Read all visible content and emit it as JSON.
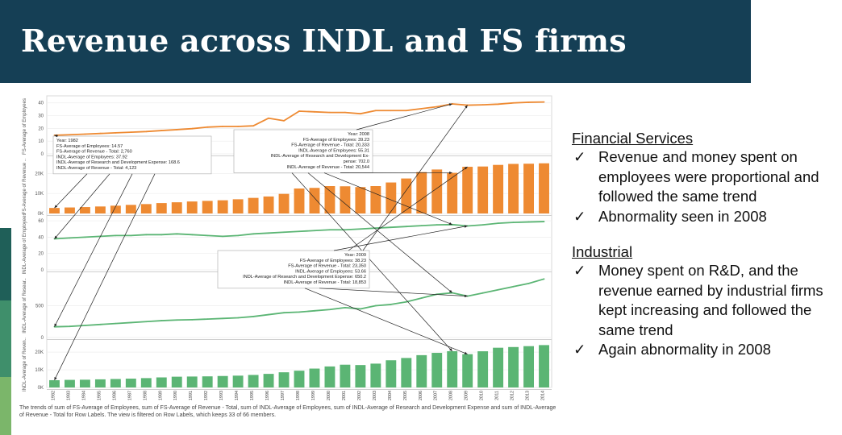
{
  "slide": {
    "title": "Revenue across INDL and FS firms",
    "accent_color": "#153f55",
    "stripe_colors": [
      "#1f5f58",
      "#3f8f6b",
      "#7bb66a"
    ]
  },
  "caption": "The trends of sum of FS-Average of Employees, sum of FS-Average of Revenue - Total, sum of INDL-Average of Employees, sum of INDL-Average of Research and Development Expense and sum of INDL-Average of Revenue - Total for Row Labels. The view is filtered on Row Labels, which keeps 33 of 66 members.",
  "right_panel": {
    "sections": [
      {
        "heading": "Financial Services",
        "bullets": [
          "Revenue and money spent on employees were proportional and followed the same trend",
          "Abnormality seen in 2008"
        ]
      },
      {
        "heading": "Industrial",
        "bullets": [
          "Money spent on R&D, and the revenue earned by industrial firms kept increasing and followed the same trend",
          "Again abnormality in 2008"
        ]
      }
    ],
    "check_glyph": "✓"
  },
  "chart_data": {
    "type": "line",
    "x": [
      1982,
      1983,
      1984,
      1985,
      1986,
      1987,
      1988,
      1989,
      1990,
      1991,
      1992,
      1993,
      1994,
      1995,
      1996,
      1997,
      1998,
      1999,
      2000,
      2001,
      2002,
      2003,
      2004,
      2005,
      2006,
      2007,
      2008,
      2009,
      2010,
      2011,
      2012,
      2013,
      2014
    ],
    "orange_color": "#ee8a32",
    "green_color": "#5bb574",
    "panels": [
      {
        "id": "fs_emp",
        "kind": "line",
        "color": "orange",
        "ylabel": "FS-Average of Employees",
        "ticks": [
          {
            "v": 0,
            "label": "0"
          },
          {
            "v": 10,
            "label": "10"
          },
          {
            "v": 20,
            "label": "20"
          },
          {
            "v": 30,
            "label": "30"
          },
          {
            "v": 40,
            "label": "40"
          }
        ],
        "ylim": [
          0,
          43
        ],
        "values": [
          14.57,
          15,
          15.5,
          16,
          16.5,
          17,
          17.5,
          18.3,
          19,
          19.8,
          21,
          21.5,
          21.5,
          22,
          28,
          26,
          33.5,
          33,
          32.5,
          32.5,
          31.5,
          34,
          34,
          34,
          35.5,
          37,
          39.23,
          38.23,
          38.5,
          39,
          40,
          40.5,
          40.7
        ]
      },
      {
        "id": "fs_rev",
        "kind": "bar",
        "color": "orange",
        "ylabel": "FS-Average of Revenue ..",
        "ticks": [
          {
            "v": 0,
            "label": "0K"
          },
          {
            "v": 10000,
            "label": "10K"
          },
          {
            "v": 20000,
            "label": "20K"
          }
        ],
        "ylim": [
          0,
          27000
        ],
        "values": [
          2760,
          3000,
          3200,
          3500,
          3900,
          4300,
          4700,
          5200,
          5600,
          6000,
          6300,
          6600,
          7100,
          7800,
          8500,
          9800,
          12500,
          12800,
          13700,
          13600,
          13200,
          13700,
          15500,
          17500,
          20700,
          22000,
          20333,
          23350,
          23500,
          24300,
          24800,
          24900,
          25100
        ]
      },
      {
        "id": "indl_emp",
        "kind": "line",
        "color": "green",
        "ylabel": "INDL-Average of Employees",
        "ticks": [
          {
            "v": 0,
            "label": "0"
          },
          {
            "v": 20,
            "label": "20"
          },
          {
            "v": 40,
            "label": "40"
          },
          {
            "v": 60,
            "label": "60"
          }
        ],
        "ylim": [
          0,
          64
        ],
        "values": [
          37.92,
          39,
          40,
          41,
          42,
          42,
          43,
          43,
          44,
          43,
          42,
          41,
          42,
          44,
          45,
          46,
          47,
          48,
          49,
          49,
          50,
          51,
          52,
          53,
          54,
          55,
          55.31,
          53.66,
          55,
          57,
          58,
          58.5,
          59
        ]
      },
      {
        "id": "indl_rd",
        "kind": "line",
        "color": "green",
        "ylabel": "INDL-Average of Resear..",
        "ticks": [
          {
            "v": 0,
            "label": "0"
          },
          {
            "v": 500,
            "label": "500"
          }
        ],
        "ylim": [
          0,
          1000
        ],
        "values": [
          168.6,
          175,
          190,
          205,
          220,
          235,
          250,
          265,
          275,
          280,
          290,
          300,
          310,
          330,
          360,
          390,
          400,
          420,
          440,
          470,
          450,
          500,
          520,
          560,
          620,
          680,
          702,
          650.2,
          700,
          750,
          800,
          850,
          920
        ]
      },
      {
        "id": "indl_rev",
        "kind": "bar",
        "color": "green",
        "ylabel": "INDL-Average of Reven..",
        "ticks": [
          {
            "v": 0,
            "label": "0K"
          },
          {
            "v": 10000,
            "label": "10K"
          },
          {
            "v": 20000,
            "label": "20K"
          }
        ],
        "ylim": [
          0,
          26000
        ],
        "values": [
          4123,
          4300,
          4400,
          4600,
          4800,
          5000,
          5300,
          5700,
          6100,
          6200,
          6300,
          6500,
          6700,
          7100,
          7700,
          8600,
          9500,
          10700,
          11900,
          12900,
          12700,
          13500,
          15400,
          16700,
          18300,
          19600,
          20544,
          18853,
          20500,
          22500,
          22900,
          23400,
          24000
        ]
      }
    ],
    "tooltips": [
      {
        "year": 1982,
        "lines": [
          "Year: 1982",
          "FS-Average of Employees: 14.57",
          "FS-Average of Revenue - Total: 2,760",
          "INDL-Average of Employees: 37.92",
          "INDL-Average of Research and Development Expense: 168.6",
          "INDL-Average of Revenue - Total: 4,123"
        ]
      },
      {
        "year": 2008,
        "lines": [
          "Year: 2008",
          "FS-Average of Employees: 39.23",
          "FS-Average of Revenue - Total: 20,333",
          "INDL-Average of Employees: 55.31",
          "INDL-Average of Research and Development Ex-",
          "pense: 702.0",
          "INDL-Average of Revenue - Total: 20,544"
        ]
      },
      {
        "year": 2009,
        "lines": [
          "Year: 2009",
          "FS-Average of Employees: 38.23",
          "FS-Average of Revenue - Total: 23,350",
          "INDL-Average of Employees: 53.66",
          "INDL-Average of Research and Development Expense: 650.2",
          "INDL-Average of Revenue - Total: 18,853"
        ]
      }
    ]
  }
}
